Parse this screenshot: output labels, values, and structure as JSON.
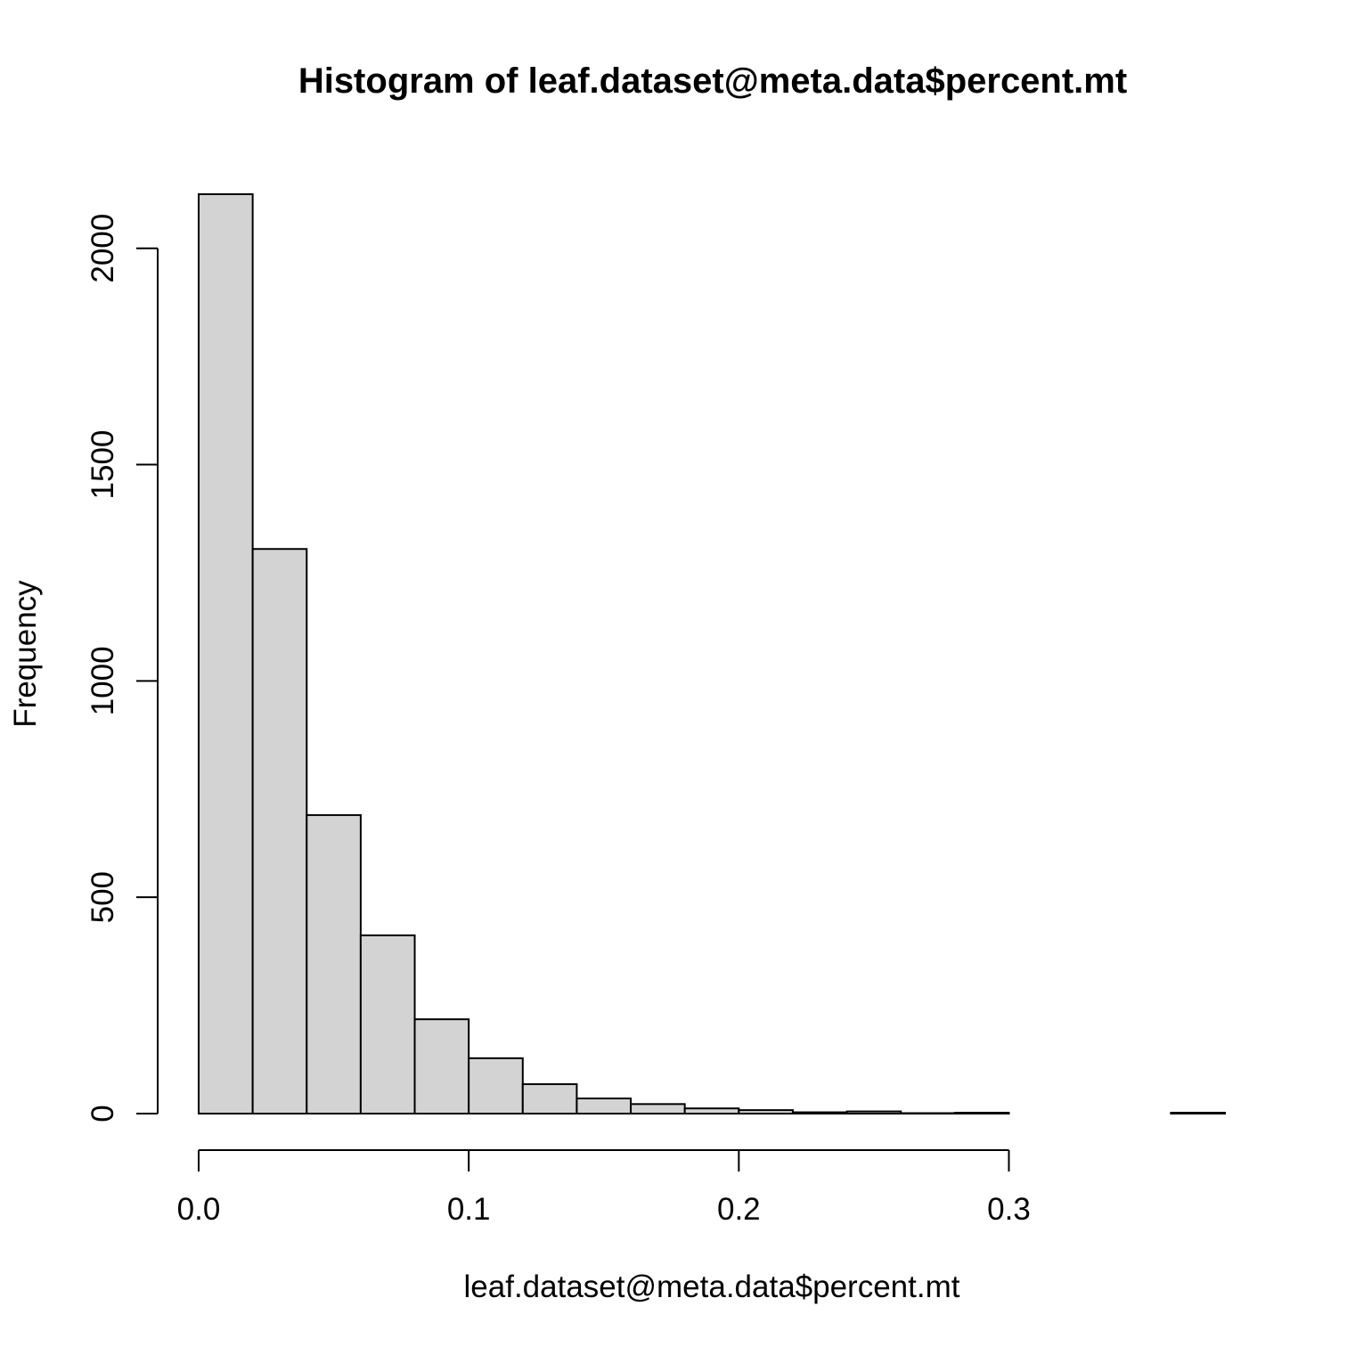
{
  "chart_data": {
    "type": "bar",
    "title": "Histogram of leaf.dataset@meta.data$percent.mt",
    "xlabel": "leaf.dataset@meta.data$percent.mt",
    "ylabel": "Frequency",
    "bin_edges": [
      0.0,
      0.02,
      0.04,
      0.06,
      0.08,
      0.1,
      0.12,
      0.14,
      0.16,
      0.18,
      0.2,
      0.22,
      0.24,
      0.26,
      0.28,
      0.3,
      0.32,
      0.34,
      0.36,
      0.38
    ],
    "values": [
      2125,
      1305,
      690,
      412,
      218,
      128,
      68,
      35,
      22,
      12,
      8,
      3,
      5,
      1,
      2,
      0,
      0,
      0,
      2
    ],
    "xlim": [
      0.0,
      0.38
    ],
    "ylim": [
      0,
      2125
    ],
    "x_ticks": [
      0.0,
      0.1,
      0.2,
      0.3
    ],
    "x_tick_labels": [
      "0.0",
      "0.1",
      "0.2",
      "0.3"
    ],
    "y_ticks": [
      0,
      500,
      1000,
      1500,
      2000
    ],
    "y_tick_labels": [
      "0",
      "500",
      "1000",
      "1500",
      "2000"
    ],
    "grid": false,
    "bar_color": "#d3d3d3",
    "border_color": "#000000"
  }
}
